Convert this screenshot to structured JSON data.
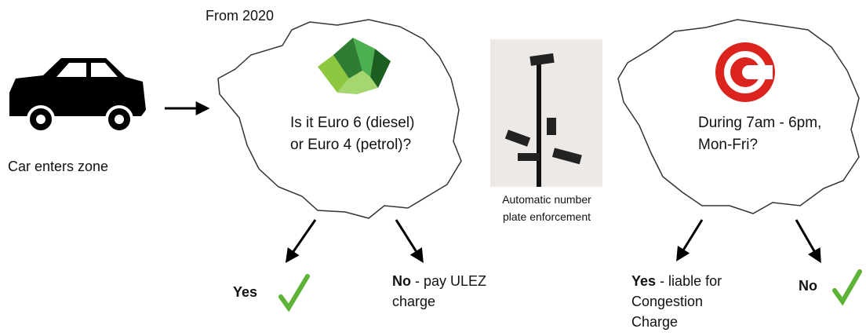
{
  "car": {
    "label": "Car enters zone"
  },
  "ulez": {
    "note": "From 2020",
    "question_lines": [
      "Is it Euro 6 (diesel)",
      "or Euro 4 (petrol)?"
    ],
    "yes": {
      "label": "Yes"
    },
    "no": {
      "label": "No",
      "detail_lines": [
        "- pay ULEZ",
        "charge"
      ]
    }
  },
  "camera": {
    "caption_lines": [
      "Automatic number",
      "plate enforcement"
    ]
  },
  "congestion": {
    "question_lines": [
      "During 7am - 6pm,",
      "Mon-Fri?"
    ],
    "yes": {
      "label": "Yes",
      "detail_lines": [
        "- liable for",
        "Congestion",
        "Charge"
      ]
    },
    "no": {
      "label": "No"
    }
  }
}
